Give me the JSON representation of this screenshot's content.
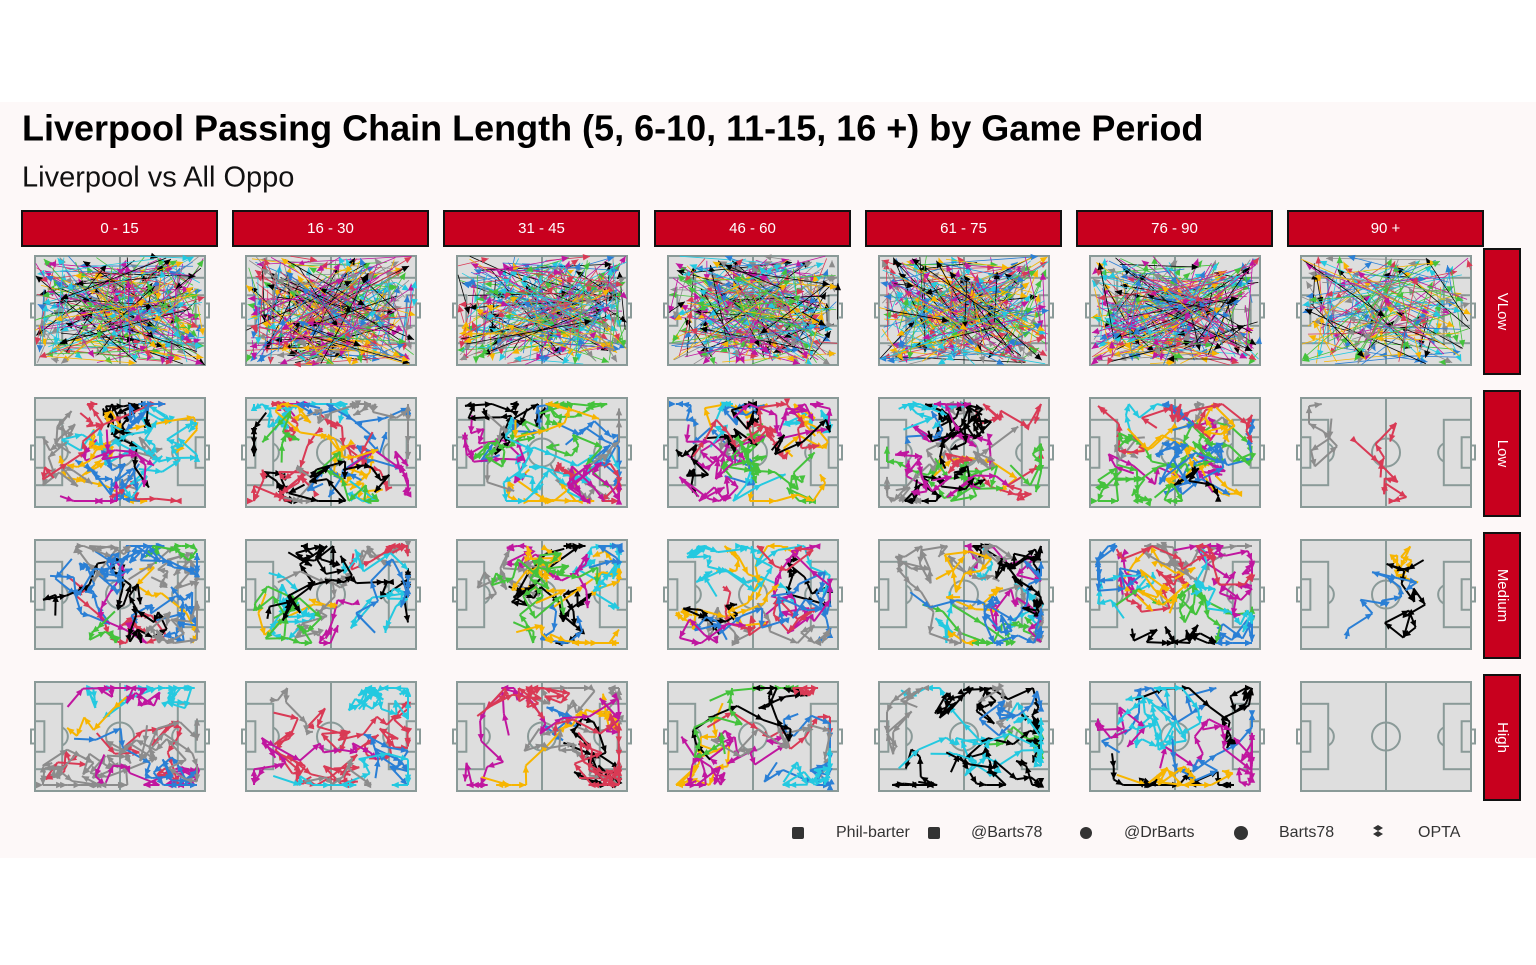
{
  "title": "Liverpool Passing Chain Length (5, 6-10, 11-15, 16 +) by Game Period",
  "subtitle": "Liverpool vs All Oppo",
  "columns": [
    "0 - 15",
    "16 - 30",
    "31 - 45",
    "46 - 60",
    "61 - 75",
    "76 - 90",
    "90 +"
  ],
  "rows": [
    "VLow",
    "Low",
    "Medium",
    "High"
  ],
  "footer": [
    "Phil-barter",
    "@Barts78",
    "@DrBarts",
    "Barts78",
    "OPTA"
  ]
}
